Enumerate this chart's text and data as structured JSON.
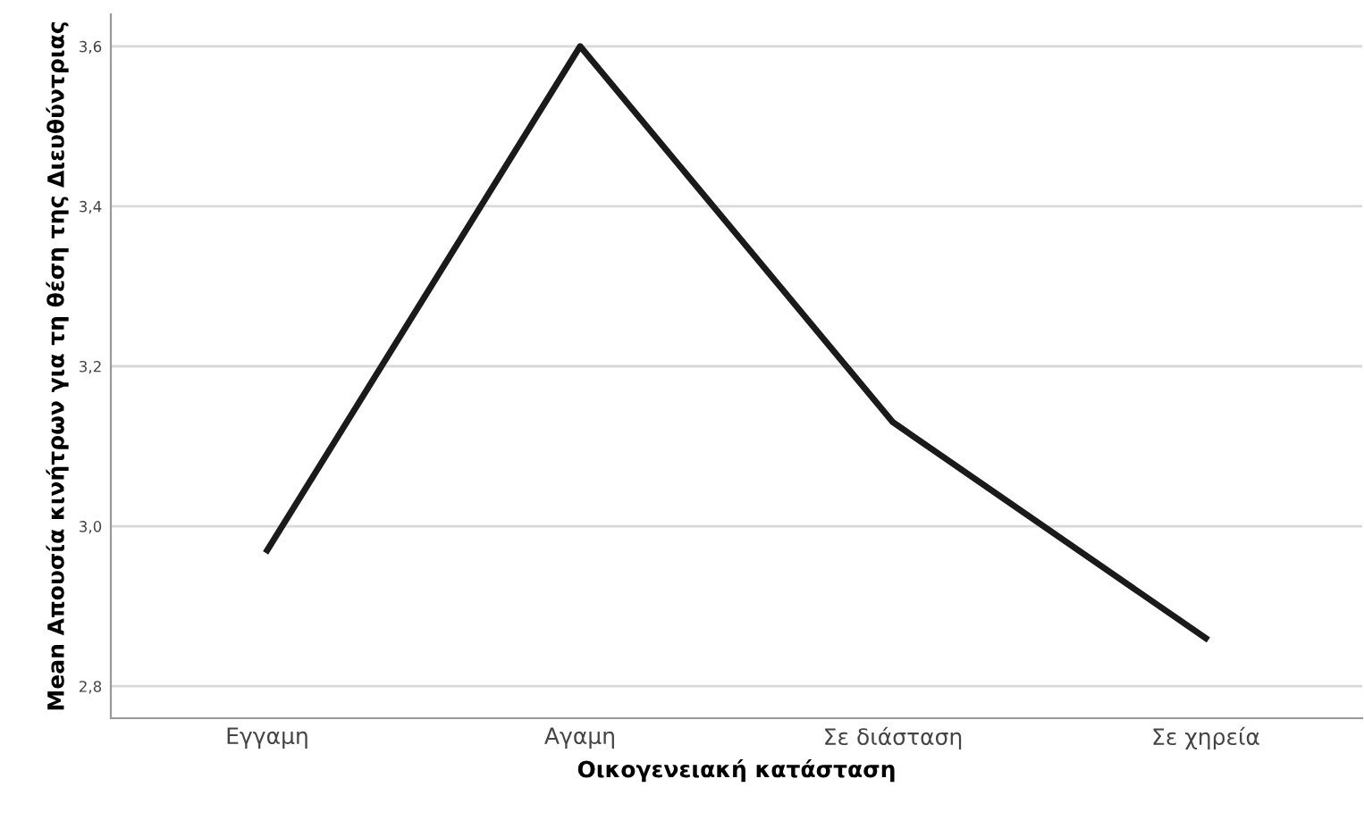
{
  "chart_data": {
    "type": "line",
    "xlabel": "Οικογενειακή κατάσταση",
    "ylabel": "Mean Απουσία κινήτρων για τη θέση της Διευθύντριας",
    "categories": [
      "Εγγαμη",
      "Αγαμη",
      "Σε διάσταση",
      "Σε χηρεία"
    ],
    "series": [
      {
        "color": "#1a1a1a",
        "values": [
          2.97,
          3.6,
          3.13,
          2.86
        ]
      }
    ],
    "ylim": [
      2.76,
      3.64
    ],
    "yticks": [
      {
        "value": 2.8,
        "label": "2,8"
      },
      {
        "value": 3.0,
        "label": "3,0"
      },
      {
        "value": 3.2,
        "label": "3,2"
      },
      {
        "value": 3.4,
        "label": "3,4"
      },
      {
        "value": 3.6,
        "label": "3,6"
      }
    ],
    "grid": "y",
    "marker": "none",
    "line_style": "solid"
  }
}
